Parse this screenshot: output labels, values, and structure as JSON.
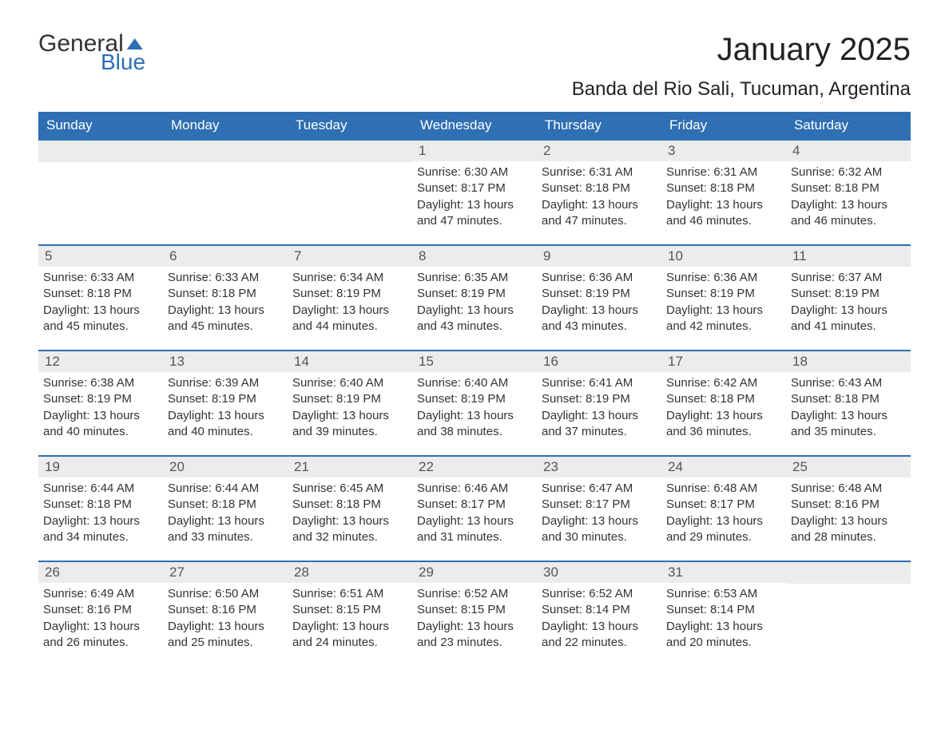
{
  "logo": {
    "word1": "General",
    "word2": "Blue"
  },
  "title": "January 2025",
  "subtitle": "Banda del Rio Sali, Tucuman, Argentina",
  "colors": {
    "brand_blue": "#2f6fb3",
    "header_text": "#ffffff",
    "daybar_bg": "#ececec",
    "daybar_text": "#555555",
    "body_text": "#333333",
    "page_bg": "#ffffff"
  },
  "day_labels": [
    "Sunday",
    "Monday",
    "Tuesday",
    "Wednesday",
    "Thursday",
    "Friday",
    "Saturday"
  ],
  "weeks": [
    [
      {
        "blank": true
      },
      {
        "blank": true
      },
      {
        "blank": true
      },
      {
        "n": "1",
        "sr": "Sunrise: 6:30 AM",
        "ss": "Sunset: 8:17 PM",
        "dl": "Daylight: 13 hours and 47 minutes."
      },
      {
        "n": "2",
        "sr": "Sunrise: 6:31 AM",
        "ss": "Sunset: 8:18 PM",
        "dl": "Daylight: 13 hours and 47 minutes."
      },
      {
        "n": "3",
        "sr": "Sunrise: 6:31 AM",
        "ss": "Sunset: 8:18 PM",
        "dl": "Daylight: 13 hours and 46 minutes."
      },
      {
        "n": "4",
        "sr": "Sunrise: 6:32 AM",
        "ss": "Sunset: 8:18 PM",
        "dl": "Daylight: 13 hours and 46 minutes."
      }
    ],
    [
      {
        "n": "5",
        "sr": "Sunrise: 6:33 AM",
        "ss": "Sunset: 8:18 PM",
        "dl": "Daylight: 13 hours and 45 minutes."
      },
      {
        "n": "6",
        "sr": "Sunrise: 6:33 AM",
        "ss": "Sunset: 8:18 PM",
        "dl": "Daylight: 13 hours and 45 minutes."
      },
      {
        "n": "7",
        "sr": "Sunrise: 6:34 AM",
        "ss": "Sunset: 8:19 PM",
        "dl": "Daylight: 13 hours and 44 minutes."
      },
      {
        "n": "8",
        "sr": "Sunrise: 6:35 AM",
        "ss": "Sunset: 8:19 PM",
        "dl": "Daylight: 13 hours and 43 minutes."
      },
      {
        "n": "9",
        "sr": "Sunrise: 6:36 AM",
        "ss": "Sunset: 8:19 PM",
        "dl": "Daylight: 13 hours and 43 minutes."
      },
      {
        "n": "10",
        "sr": "Sunrise: 6:36 AM",
        "ss": "Sunset: 8:19 PM",
        "dl": "Daylight: 13 hours and 42 minutes."
      },
      {
        "n": "11",
        "sr": "Sunrise: 6:37 AM",
        "ss": "Sunset: 8:19 PM",
        "dl": "Daylight: 13 hours and 41 minutes."
      }
    ],
    [
      {
        "n": "12",
        "sr": "Sunrise: 6:38 AM",
        "ss": "Sunset: 8:19 PM",
        "dl": "Daylight: 13 hours and 40 minutes."
      },
      {
        "n": "13",
        "sr": "Sunrise: 6:39 AM",
        "ss": "Sunset: 8:19 PM",
        "dl": "Daylight: 13 hours and 40 minutes."
      },
      {
        "n": "14",
        "sr": "Sunrise: 6:40 AM",
        "ss": "Sunset: 8:19 PM",
        "dl": "Daylight: 13 hours and 39 minutes."
      },
      {
        "n": "15",
        "sr": "Sunrise: 6:40 AM",
        "ss": "Sunset: 8:19 PM",
        "dl": "Daylight: 13 hours and 38 minutes."
      },
      {
        "n": "16",
        "sr": "Sunrise: 6:41 AM",
        "ss": "Sunset: 8:19 PM",
        "dl": "Daylight: 13 hours and 37 minutes."
      },
      {
        "n": "17",
        "sr": "Sunrise: 6:42 AM",
        "ss": "Sunset: 8:18 PM",
        "dl": "Daylight: 13 hours and 36 minutes."
      },
      {
        "n": "18",
        "sr": "Sunrise: 6:43 AM",
        "ss": "Sunset: 8:18 PM",
        "dl": "Daylight: 13 hours and 35 minutes."
      }
    ],
    [
      {
        "n": "19",
        "sr": "Sunrise: 6:44 AM",
        "ss": "Sunset: 8:18 PM",
        "dl": "Daylight: 13 hours and 34 minutes."
      },
      {
        "n": "20",
        "sr": "Sunrise: 6:44 AM",
        "ss": "Sunset: 8:18 PM",
        "dl": "Daylight: 13 hours and 33 minutes."
      },
      {
        "n": "21",
        "sr": "Sunrise: 6:45 AM",
        "ss": "Sunset: 8:18 PM",
        "dl": "Daylight: 13 hours and 32 minutes."
      },
      {
        "n": "22",
        "sr": "Sunrise: 6:46 AM",
        "ss": "Sunset: 8:17 PM",
        "dl": "Daylight: 13 hours and 31 minutes."
      },
      {
        "n": "23",
        "sr": "Sunrise: 6:47 AM",
        "ss": "Sunset: 8:17 PM",
        "dl": "Daylight: 13 hours and 30 minutes."
      },
      {
        "n": "24",
        "sr": "Sunrise: 6:48 AM",
        "ss": "Sunset: 8:17 PM",
        "dl": "Daylight: 13 hours and 29 minutes."
      },
      {
        "n": "25",
        "sr": "Sunrise: 6:48 AM",
        "ss": "Sunset: 8:16 PM",
        "dl": "Daylight: 13 hours and 28 minutes."
      }
    ],
    [
      {
        "n": "26",
        "sr": "Sunrise: 6:49 AM",
        "ss": "Sunset: 8:16 PM",
        "dl": "Daylight: 13 hours and 26 minutes."
      },
      {
        "n": "27",
        "sr": "Sunrise: 6:50 AM",
        "ss": "Sunset: 8:16 PM",
        "dl": "Daylight: 13 hours and 25 minutes."
      },
      {
        "n": "28",
        "sr": "Sunrise: 6:51 AM",
        "ss": "Sunset: 8:15 PM",
        "dl": "Daylight: 13 hours and 24 minutes."
      },
      {
        "n": "29",
        "sr": "Sunrise: 6:52 AM",
        "ss": "Sunset: 8:15 PM",
        "dl": "Daylight: 13 hours and 23 minutes."
      },
      {
        "n": "30",
        "sr": "Sunrise: 6:52 AM",
        "ss": "Sunset: 8:14 PM",
        "dl": "Daylight: 13 hours and 22 minutes."
      },
      {
        "n": "31",
        "sr": "Sunrise: 6:53 AM",
        "ss": "Sunset: 8:14 PM",
        "dl": "Daylight: 13 hours and 20 minutes."
      },
      {
        "blank": true
      }
    ]
  ]
}
